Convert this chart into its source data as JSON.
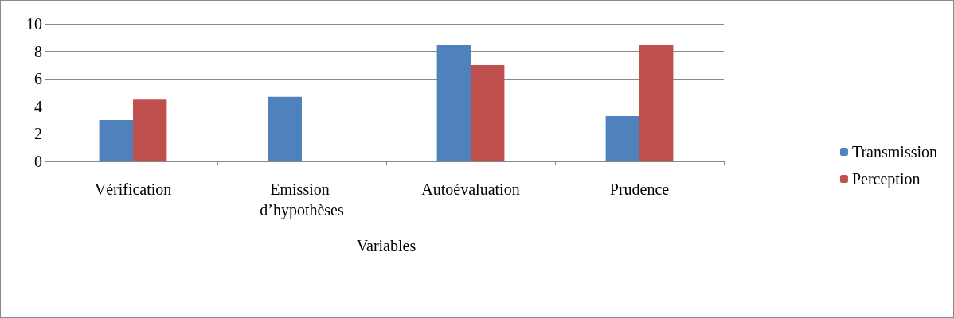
{
  "chart_data": {
    "type": "bar",
    "xlabel": "Variables",
    "categories": [
      "Vérification",
      "Emission d’hypothèses",
      "Autoévaluation",
      "Prudence"
    ],
    "series": [
      {
        "name": "Transmission",
        "color": "#4f81bd",
        "values": [
          3,
          4.7,
          8.5,
          3.3
        ]
      },
      {
        "name": "Perception",
        "color": "#c0504d",
        "values": [
          4.5,
          null,
          7,
          8.5
        ]
      }
    ],
    "ylim": [
      0,
      10
    ],
    "yticks": [
      0,
      2,
      4,
      6,
      8,
      10
    ],
    "grid": "y",
    "legend": "right"
  }
}
